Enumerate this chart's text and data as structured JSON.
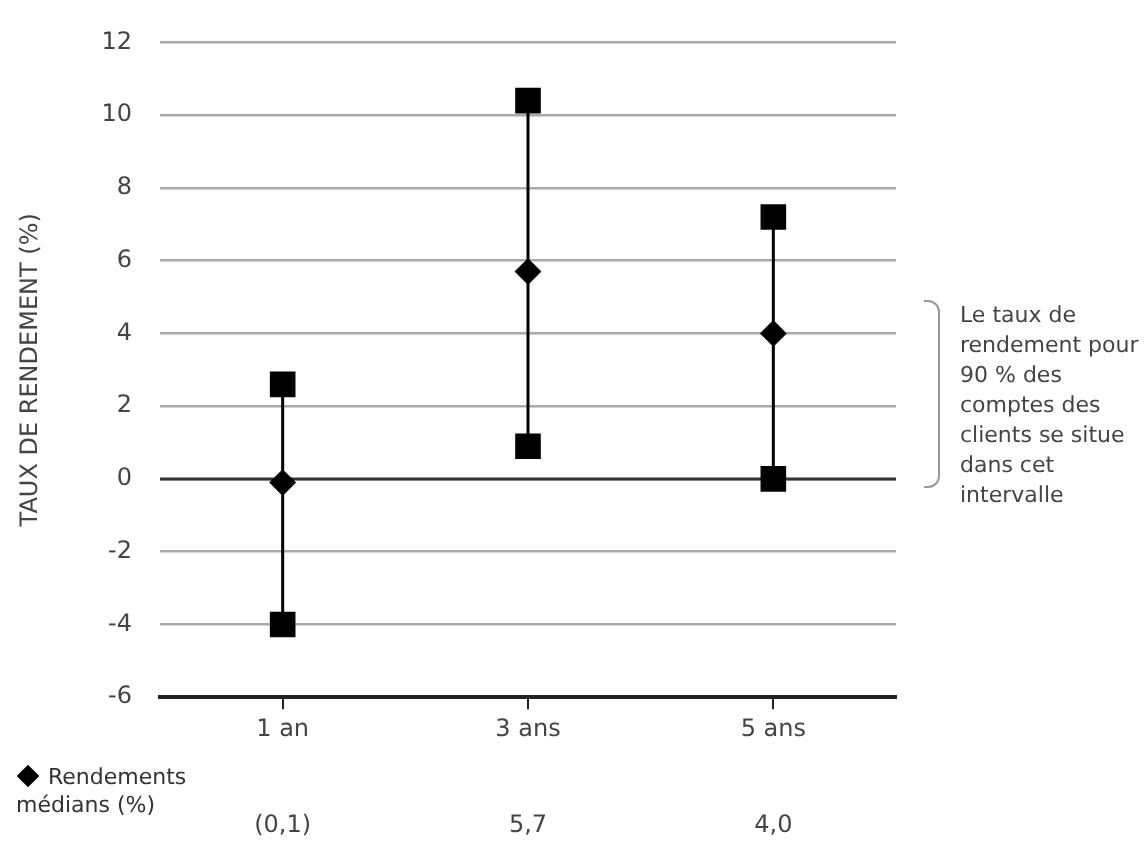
{
  "chart_data": {
    "type": "scatter",
    "ylabel": "TAUX DE RENDEMENT (%)",
    "categories": [
      "1 an",
      "3 ans",
      "5 ans"
    ],
    "series": [
      {
        "type": "line",
        "color": "#000000",
        "marker": "square",
        "x": [
          "1 an",
          "1 an"
        ],
        "values": [
          -4.0,
          2.6
        ]
      },
      {
        "type": "line",
        "color": "#000000",
        "marker": "square",
        "x": [
          "3 ans",
          "3 ans"
        ],
        "values": [
          0.9,
          10.4
        ]
      },
      {
        "type": "line",
        "color": "#000000",
        "marker": "square",
        "x": [
          "5 ans",
          "5 ans"
        ],
        "values": [
          0.0,
          7.2
        ]
      },
      {
        "name": "Rendements médians (%)",
        "color": "#000000",
        "marker": "diamond",
        "values": [
          -0.1,
          5.7,
          4.0
        ],
        "value_labels": [
          "(0,1)",
          "5,7",
          "4,0"
        ]
      }
    ],
    "ylim": [
      -6,
      12
    ],
    "yticks": [
      -6,
      -4,
      -2,
      0,
      2,
      4,
      6,
      8,
      10,
      12
    ],
    "grid": "y",
    "legend": "bottom left",
    "ref_lines": [
      {
        "axis": "y",
        "value": 0,
        "color": "#333333"
      }
    ],
    "annotations": [
      "Le taux de rendement pour 90 % des comptes des clients se situe dans cet intervalle"
    ]
  }
}
